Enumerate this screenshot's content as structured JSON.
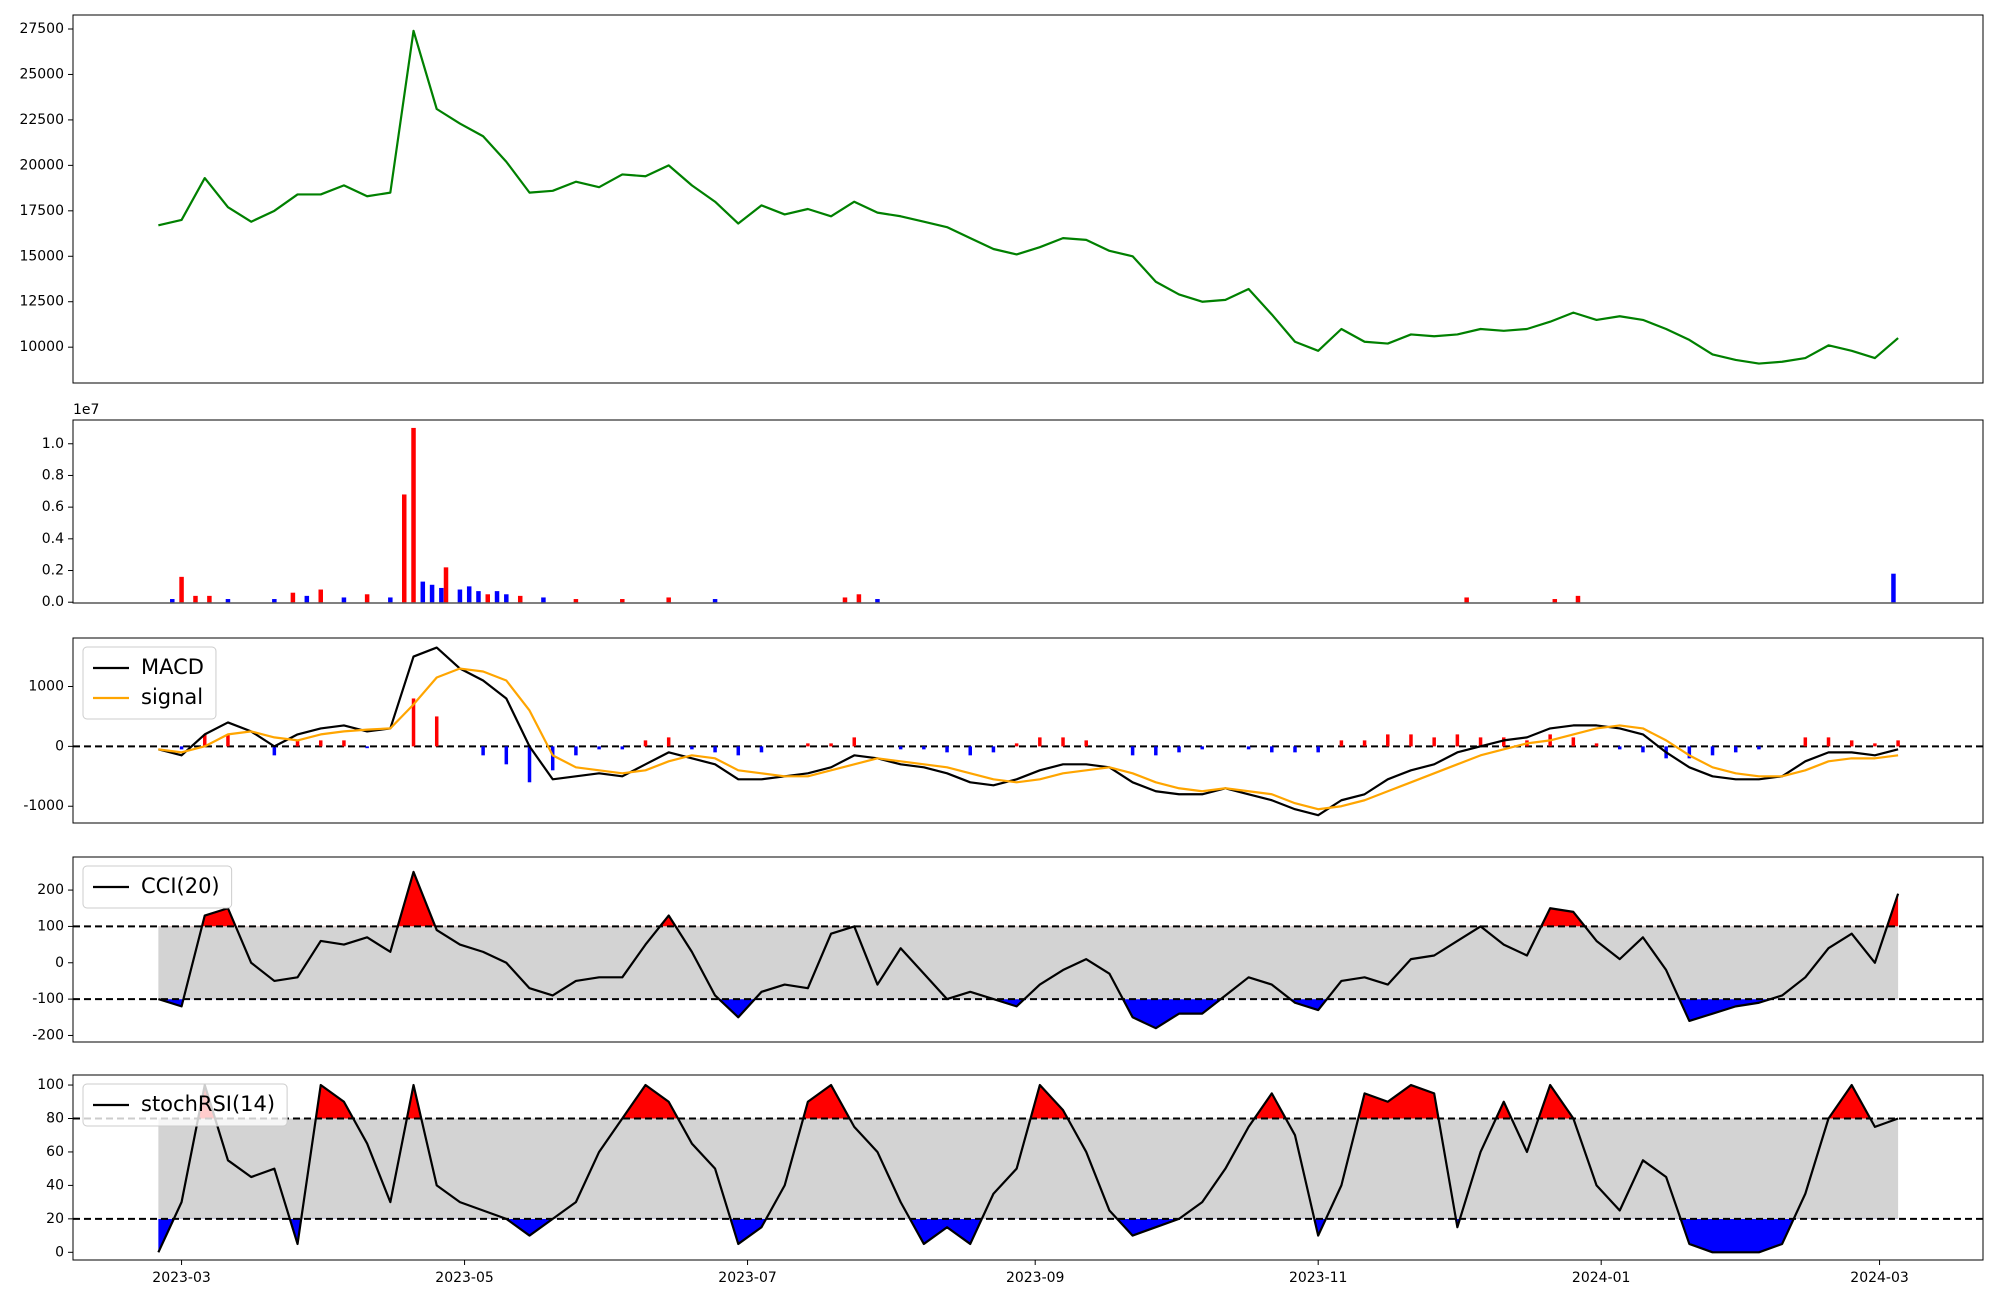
{
  "chart_data": [
    {
      "type": "line",
      "x": [
        -5,
        0,
        5,
        10,
        15,
        20,
        25,
        30,
        35,
        40,
        45,
        50,
        55,
        60,
        65,
        70,
        75,
        80,
        85,
        90,
        95,
        100,
        105,
        110,
        115,
        120,
        125,
        130,
        135,
        140,
        145,
        150,
        155,
        160,
        165,
        170,
        175,
        180,
        185,
        190,
        195,
        200,
        205,
        210,
        215,
        220,
        225,
        230,
        235,
        240,
        245,
        250,
        255,
        260,
        265,
        270,
        275,
        280,
        285,
        290,
        295,
        300,
        305,
        310,
        315,
        320,
        325,
        330,
        335,
        340,
        345,
        350,
        355,
        360,
        365,
        370
      ],
      "series": [
        {
          "color": "#008000",
          "values": [
            16700,
            17000,
            19300,
            17700,
            16900,
            17500,
            18400,
            18400,
            18900,
            18300,
            18500,
            27400,
            23100,
            22300,
            21600,
            20200,
            18500,
            18600,
            19100,
            18800,
            19500,
            19400,
            20000,
            18900,
            18000,
            16800,
            17800,
            17300,
            17600,
            17200,
            18000,
            17400,
            17200,
            16900,
            16600,
            16000,
            15400,
            15100,
            15500,
            16000,
            15900,
            15300,
            15000,
            13600,
            12900,
            12500,
            12600,
            13200,
            11800,
            10300,
            9800,
            11000,
            10300,
            10200,
            10700,
            10600,
            10700,
            11000,
            10900,
            11000,
            11400,
            11900,
            11500,
            11700,
            11500,
            11000,
            10400,
            9600,
            9300,
            9100,
            9200,
            9400,
            10100,
            9800,
            9400,
            10500
          ]
        }
      ],
      "xlim": [
        -23.4,
        388.3
      ],
      "ylim": [
        8030,
        28270
      ],
      "yticks": [
        10000,
        12500,
        15000,
        17500,
        20000,
        22500,
        25000,
        27500
      ]
    },
    {
      "type": "bar",
      "offset_text": "1e7",
      "x": [
        -2,
        0,
        3,
        6,
        10,
        20,
        24,
        27,
        30,
        35,
        40,
        45,
        48,
        50,
        52,
        54,
        56,
        57,
        60,
        62,
        64,
        66,
        68,
        70,
        73,
        78,
        85,
        95,
        105,
        115,
        143,
        146,
        150,
        277,
        296,
        301,
        369
      ],
      "values": [
        0.02,
        0.16,
        0.04,
        0.04,
        0.02,
        0.02,
        0.06,
        0.04,
        0.08,
        0.03,
        0.05,
        0.03,
        0.68,
        1.1,
        0.13,
        0.11,
        0.09,
        0.22,
        0.08,
        0.1,
        0.07,
        0.05,
        0.07,
        0.05,
        0.04,
        0.03,
        0.02,
        0.02,
        0.03,
        0.02,
        0.03,
        0.05,
        0.02,
        0.03,
        0.02,
        0.04,
        0.18
      ],
      "colors": [
        "#0000ff",
        "#ff0000",
        "#ff0000",
        "#ff0000",
        "#0000ff",
        "#0000ff",
        "#ff0000",
        "#0000ff",
        "#ff0000",
        "#0000ff",
        "#ff0000",
        "#0000ff",
        "#ff0000",
        "#ff0000",
        "#0000ff",
        "#0000ff",
        "#0000ff",
        "#ff0000",
        "#0000ff",
        "#0000ff",
        "#0000ff",
        "#ff0000",
        "#0000ff",
        "#0000ff",
        "#ff0000",
        "#0000ff",
        "#ff0000",
        "#ff0000",
        "#ff0000",
        "#0000ff",
        "#ff0000",
        "#ff0000",
        "#0000ff",
        "#ff0000",
        "#ff0000",
        "#ff0000",
        "#0000ff"
      ],
      "xlim": [
        -23.4,
        388.3
      ],
      "ylim": [
        -0.005,
        1.15
      ],
      "yticks": [
        {
          "value": 0,
          "label": "0.0"
        },
        0.2,
        0.4,
        0.6,
        0.8,
        {
          "value": 1,
          "label": "1.0"
        }
      ]
    },
    {
      "type": "line",
      "legend": "upper left",
      "hlines": [
        0
      ],
      "x": [
        -5,
        0,
        5,
        10,
        15,
        20,
        25,
        30,
        35,
        40,
        45,
        50,
        55,
        60,
        65,
        70,
        75,
        80,
        85,
        90,
        95,
        100,
        105,
        110,
        115,
        120,
        125,
        130,
        135,
        140,
        145,
        150,
        155,
        160,
        165,
        170,
        175,
        180,
        185,
        190,
        195,
        200,
        205,
        210,
        215,
        220,
        225,
        230,
        235,
        240,
        245,
        250,
        255,
        260,
        265,
        270,
        275,
        280,
        285,
        290,
        295,
        300,
        305,
        310,
        315,
        320,
        325,
        330,
        335,
        340,
        345,
        350,
        355,
        360,
        365,
        370
      ],
      "series": [
        {
          "name": "MACD",
          "color": "#000000",
          "values": [
            -50,
            -150,
            200,
            400,
            250,
            0,
            200,
            300,
            350,
            250,
            300,
            1500,
            1650,
            1300,
            1100,
            800,
            0,
            -550,
            -500,
            -450,
            -500,
            -300,
            -100,
            -200,
            -300,
            -550,
            -550,
            -500,
            -450,
            -350,
            -150,
            -200,
            -300,
            -350,
            -450,
            -600,
            -650,
            -550,
            -400,
            -300,
            -300,
            -350,
            -600,
            -750,
            -800,
            -800,
            -700,
            -800,
            -900,
            -1050,
            -1150,
            -900,
            -800,
            -550,
            -400,
            -300,
            -100,
            0,
            100,
            150,
            300,
            350,
            350,
            300,
            200,
            -100,
            -350,
            -500,
            -550,
            -550,
            -500,
            -250,
            -100,
            -100,
            -150,
            -50
          ]
        },
        {
          "name": "signal",
          "color": "#ffa500",
          "values": [
            -50,
            -100,
            0,
            200,
            250,
            150,
            100,
            200,
            250,
            280,
            300,
            700,
            1150,
            1300,
            1250,
            1100,
            600,
            -150,
            -350,
            -400,
            -450,
            -400,
            -250,
            -150,
            -200,
            -400,
            -450,
            -500,
            -500,
            -400,
            -300,
            -200,
            -250,
            -300,
            -350,
            -450,
            -550,
            -600,
            -550,
            -450,
            -400,
            -350,
            -450,
            -600,
            -700,
            -750,
            -700,
            -750,
            -800,
            -950,
            -1050,
            -1000,
            -900,
            -750,
            -600,
            -450,
            -300,
            -150,
            -50,
            50,
            100,
            200,
            300,
            350,
            300,
            100,
            -150,
            -350,
            -450,
            -500,
            -500,
            -400,
            -250,
            -200,
            -200,
            -150
          ]
        }
      ],
      "histogram": {
        "up_color": "#ff0000",
        "down_color": "#0000ff",
        "values": [
          0,
          -50,
          200,
          200,
          0,
          -150,
          100,
          100,
          100,
          -30,
          0,
          800,
          500,
          0,
          -150,
          -300,
          -600,
          -400,
          -150,
          -50,
          -50,
          100,
          150,
          -50,
          -100,
          -150,
          -100,
          0,
          50,
          50,
          150,
          0,
          -50,
          -50,
          -100,
          -150,
          -100,
          50,
          150,
          150,
          100,
          0,
          -150,
          -150,
          -100,
          -50,
          0,
          -50,
          -100,
          -100,
          -100,
          100,
          100,
          200,
          200,
          150,
          200,
          150,
          150,
          100,
          200,
          150,
          50,
          -50,
          -100,
          -200,
          -200,
          -150,
          -100,
          -50,
          0,
          150,
          150,
          100,
          50,
          100
        ]
      },
      "xlim": [
        -23.4,
        388.3
      ],
      "ylim": [
        -1280,
        1810
      ],
      "yticks": [
        -1000,
        0,
        1000
      ]
    },
    {
      "type": "line",
      "legend": "upper left",
      "hlines": [
        -100,
        100
      ],
      "bands": [
        -100,
        100
      ],
      "band_fill": "#d3d3d3",
      "above_fill": "#ff0000",
      "below_fill": "#0000ff",
      "x": [
        -5,
        0,
        5,
        10,
        15,
        20,
        25,
        30,
        35,
        40,
        45,
        50,
        55,
        60,
        65,
        70,
        75,
        80,
        85,
        90,
        95,
        100,
        105,
        110,
        115,
        120,
        125,
        130,
        135,
        140,
        145,
        150,
        155,
        160,
        165,
        170,
        175,
        180,
        185,
        190,
        195,
        200,
        205,
        210,
        215,
        220,
        225,
        230,
        235,
        240,
        245,
        250,
        255,
        260,
        265,
        270,
        275,
        280,
        285,
        290,
        295,
        300,
        305,
        310,
        315,
        320,
        325,
        330,
        335,
        340,
        345,
        350,
        355,
        360,
        365,
        370
      ],
      "series": [
        {
          "name": "CCI(20)",
          "color": "#000000",
          "values": [
            -100,
            -120,
            130,
            150,
            0,
            -50,
            -40,
            60,
            50,
            70,
            30,
            250,
            90,
            50,
            30,
            0,
            -70,
            -90,
            -50,
            -40,
            -40,
            50,
            130,
            30,
            -90,
            -150,
            -80,
            -60,
            -70,
            80,
            100,
            -60,
            40,
            -30,
            -100,
            -80,
            -100,
            -120,
            -60,
            -20,
            10,
            -30,
            -150,
            -180,
            -140,
            -140,
            -90,
            -40,
            -60,
            -110,
            -130,
            -50,
            -40,
            -60,
            10,
            20,
            60,
            100,
            50,
            20,
            150,
            140,
            60,
            10,
            70,
            -20,
            -160,
            -140,
            -120,
            -110,
            -90,
            -40,
            40,
            80,
            0,
            190
          ]
        }
      ],
      "xlim": [
        -23.4,
        388.3
      ],
      "ylim": [
        -218,
        291
      ],
      "yticks": [
        -200,
        -100,
        0,
        100,
        200
      ]
    },
    {
      "type": "line",
      "legend": "upper left",
      "hlines": [
        20,
        80
      ],
      "bands": [
        20,
        80
      ],
      "band_fill": "#d3d3d3",
      "above_fill": "#ff0000",
      "below_fill": "#0000ff",
      "x": [
        -5,
        0,
        5,
        10,
        15,
        20,
        25,
        30,
        35,
        40,
        45,
        50,
        55,
        60,
        65,
        70,
        75,
        80,
        85,
        90,
        95,
        100,
        105,
        110,
        115,
        120,
        125,
        130,
        135,
        140,
        145,
        150,
        155,
        160,
        165,
        170,
        175,
        180,
        185,
        190,
        195,
        200,
        205,
        210,
        215,
        220,
        225,
        230,
        235,
        240,
        245,
        250,
        255,
        260,
        265,
        270,
        275,
        280,
        285,
        290,
        295,
        300,
        305,
        310,
        315,
        320,
        325,
        330,
        335,
        340,
        345,
        350,
        355,
        360,
        365,
        370
      ],
      "series": [
        {
          "name": "stochRSI(14)",
          "color": "#000000",
          "values": [
            0,
            30,
            100,
            55,
            45,
            50,
            5,
            100,
            90,
            65,
            30,
            100,
            40,
            30,
            25,
            20,
            10,
            20,
            30,
            60,
            80,
            100,
            90,
            65,
            50,
            5,
            15,
            40,
            90,
            100,
            75,
            60,
            30,
            5,
            15,
            5,
            35,
            50,
            100,
            85,
            60,
            25,
            10,
            15,
            20,
            30,
            50,
            75,
            95,
            70,
            10,
            40,
            95,
            90,
            100,
            95,
            15,
            60,
            90,
            60,
            100,
            80,
            40,
            25,
            55,
            45,
            5,
            0,
            0,
            0,
            5,
            35,
            80,
            100,
            75,
            80
          ]
        }
      ],
      "xlim": [
        -23.4,
        388.3
      ],
      "ylim": [
        -4.6,
        106
      ],
      "yticks": [
        0,
        20,
        40,
        60,
        80,
        100
      ],
      "xticks": [
        {
          "value": 0,
          "label": "2023-03"
        },
        {
          "value": 61,
          "label": "2023-05"
        },
        {
          "value": 122,
          "label": "2023-07"
        },
        {
          "value": 184,
          "label": "2023-09"
        },
        {
          "value": 245,
          "label": "2023-11"
        },
        {
          "value": 306,
          "label": "2024-01"
        },
        {
          "value": 366,
          "label": "2024-03"
        }
      ]
    }
  ]
}
